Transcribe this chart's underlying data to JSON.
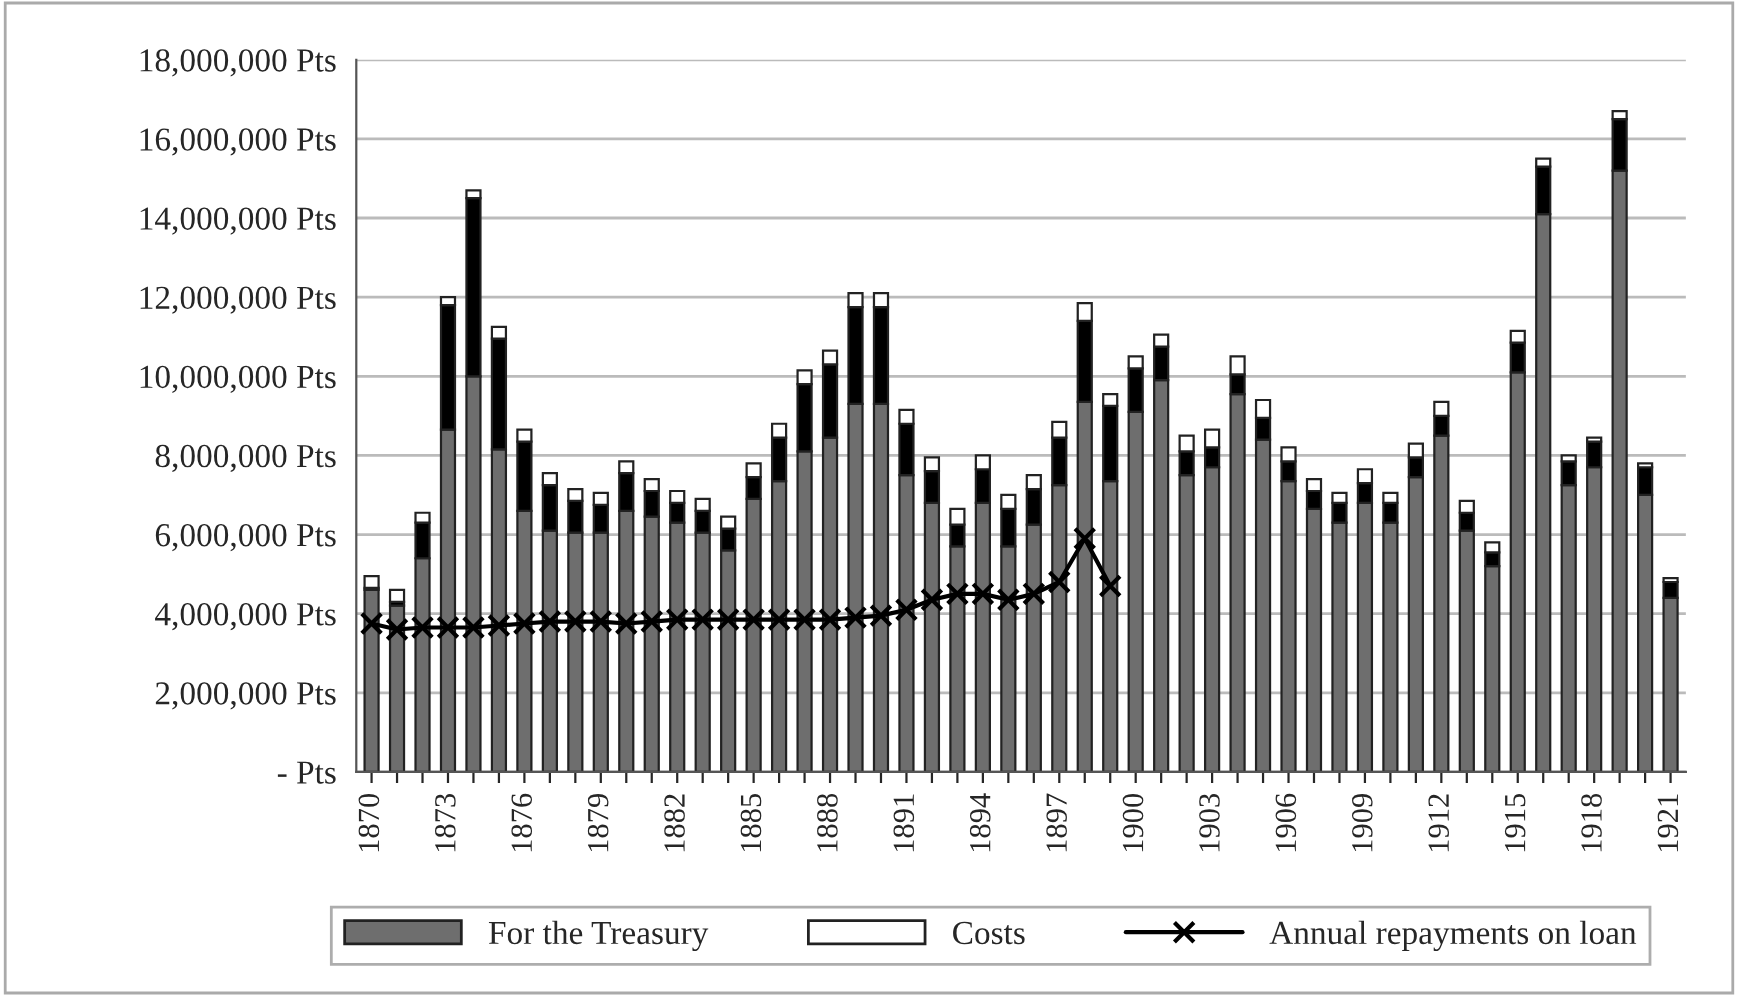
{
  "chart_data": {
    "type": "bar",
    "stacked": true,
    "categories": [
      "1870",
      null,
      null,
      "1873",
      null,
      null,
      "1876",
      null,
      null,
      "1879",
      null,
      null,
      "1882",
      null,
      null,
      "1885",
      null,
      null,
      "1888",
      null,
      null,
      "1891",
      null,
      null,
      "1894",
      null,
      null,
      "1897",
      null,
      null,
      "1900",
      null,
      null,
      "1903",
      null,
      null,
      "1906",
      null,
      null,
      "1909",
      null,
      null,
      "1912",
      null,
      null,
      "1915",
      null,
      null,
      "1918",
      null,
      null,
      "1921"
    ],
    "series": [
      {
        "name": "For the Treasury",
        "color": "#6e6e6e",
        "values": [
          4600000,
          4200000,
          5400000,
          8650000,
          10000000,
          8150000,
          6600000,
          6100000,
          6050000,
          6050000,
          6600000,
          6450000,
          6300000,
          6050000,
          5600000,
          6900000,
          7350000,
          8100000,
          8450000,
          9300000,
          9300000,
          7500000,
          6800000,
          5700000,
          6800000,
          5700000,
          6250000,
          7250000,
          9350000,
          7350000,
          9100000,
          9900000,
          7500000,
          7700000,
          9550000,
          8400000,
          7350000,
          6650000,
          6300000,
          6800000,
          6300000,
          7450000,
          8500000,
          6100000,
          5200000,
          10100000,
          14100000,
          7250000,
          7700000,
          15200000,
          7000000,
          4400000
        ]
      },
      {
        "color": "#000000",
        "values": [
          50000,
          100000,
          900000,
          3150000,
          4500000,
          2800000,
          1750000,
          1150000,
          800000,
          700000,
          950000,
          650000,
          500000,
          550000,
          550000,
          550000,
          1100000,
          1700000,
          1850000,
          2450000,
          2450000,
          1300000,
          800000,
          550000,
          850000,
          950000,
          900000,
          1200000,
          2050000,
          1900000,
          1100000,
          850000,
          600000,
          500000,
          500000,
          550000,
          500000,
          450000,
          500000,
          500000,
          500000,
          500000,
          500000,
          450000,
          350000,
          750000,
          1200000,
          600000,
          650000,
          1300000,
          700000,
          400000
        ]
      },
      {
        "name": "Costs",
        "color": "#ffffff",
        "values": [
          300000,
          300000,
          250000,
          200000,
          200000,
          300000,
          300000,
          300000,
          300000,
          300000,
          300000,
          300000,
          300000,
          300000,
          300000,
          350000,
          350000,
          350000,
          350000,
          350000,
          350000,
          350000,
          350000,
          400000,
          350000,
          350000,
          350000,
          400000,
          450000,
          300000,
          300000,
          300000,
          400000,
          450000,
          450000,
          450000,
          350000,
          300000,
          250000,
          350000,
          250000,
          350000,
          350000,
          300000,
          250000,
          300000,
          200000,
          150000,
          100000,
          200000,
          100000,
          100000
        ]
      },
      {
        "name": "Annual repayments on loan",
        "type": "line",
        "color": "#000000",
        "marker": "cross",
        "values": [
          3750000,
          3600000,
          3650000,
          3650000,
          3650000,
          3700000,
          3750000,
          3800000,
          3800000,
          3800000,
          3750000,
          3800000,
          3850000,
          3850000,
          3850000,
          3850000,
          3850000,
          3850000,
          3850000,
          3900000,
          3950000,
          4100000,
          4350000,
          4500000,
          4500000,
          4350000,
          4500000,
          4800000,
          5900000,
          4700000,
          null,
          null,
          null,
          null,
          null,
          null,
          null,
          null,
          null,
          null,
          null,
          null,
          null,
          null,
          null,
          null,
          null,
          null,
          null,
          null,
          null,
          null
        ]
      }
    ],
    "ylim": [
      0,
      18000000
    ],
    "yticks": [
      {
        "value": 0,
        "label": "- Pts"
      },
      {
        "value": 2000000,
        "label": "2,000,000 Pts"
      },
      {
        "value": 4000000,
        "label": "4,000,000 Pts"
      },
      {
        "value": 6000000,
        "label": "6,000,000 Pts"
      },
      {
        "value": 8000000,
        "label": "8,000,000 Pts"
      },
      {
        "value": 10000000,
        "label": "10,000,000 Pts"
      },
      {
        "value": 12000000,
        "label": "12,000,000 Pts"
      },
      {
        "value": 14000000,
        "label": "14,000,000 Pts"
      },
      {
        "value": 16000000,
        "label": "16,000,000 Pts"
      },
      {
        "value": 18000000,
        "label": "18,000,000 Pts"
      }
    ],
    "grid": "y",
    "legend": "bottom"
  }
}
